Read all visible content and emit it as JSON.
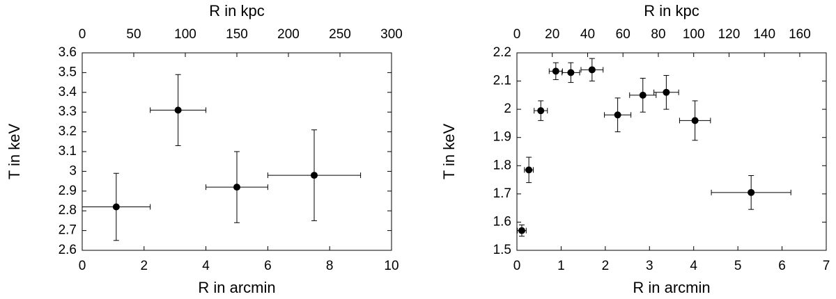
{
  "chart_data": [
    {
      "type": "scatter",
      "xlabel": "R in arcmin",
      "ylabel": "T in keV",
      "x2label": "R in kpc",
      "color": "#000000",
      "x": [
        1.1,
        3.1,
        5.0,
        7.5
      ],
      "xerr": [
        1.1,
        0.9,
        1.0,
        1.5
      ],
      "y": [
        2.82,
        3.31,
        2.92,
        2.98
      ],
      "yerr": [
        0.17,
        0.18,
        0.18,
        0.23
      ],
      "xlim": [
        0,
        10
      ],
      "xticks": [
        0,
        2,
        4,
        6,
        8,
        10
      ],
      "ylim": [
        2.6,
        3.6
      ],
      "yticks": [
        2.6,
        2.7,
        2.8,
        2.9,
        3,
        3.1,
        3.2,
        3.3,
        3.4,
        3.5,
        3.6
      ],
      "x2lim": [
        0,
        300
      ],
      "x2ticks": [
        0,
        50,
        100,
        150,
        200,
        250,
        300
      ]
    },
    {
      "type": "scatter",
      "xlabel": "R in arcmin",
      "ylabel": "T in keV",
      "x2label": "R in kpc",
      "color": "#000000",
      "x": [
        0.11,
        0.27,
        0.54,
        0.88,
        1.22,
        1.7,
        2.28,
        2.85,
        3.38,
        4.03,
        5.3
      ],
      "xerr": [
        0.1,
        0.1,
        0.15,
        0.15,
        0.2,
        0.25,
        0.3,
        0.3,
        0.28,
        0.35,
        0.9
      ],
      "y": [
        1.57,
        1.785,
        1.995,
        2.135,
        2.13,
        2.14,
        1.98,
        2.05,
        2.06,
        1.96,
        1.705
      ],
      "yerr": [
        0.02,
        0.045,
        0.035,
        0.03,
        0.035,
        0.04,
        0.06,
        0.06,
        0.06,
        0.07,
        0.06
      ],
      "xlim": [
        0,
        7
      ],
      "xticks": [
        0,
        1,
        2,
        3,
        4,
        5,
        6,
        7
      ],
      "ylim": [
        1.5,
        2.2
      ],
      "yticks": [
        1.5,
        1.6,
        1.7,
        1.8,
        1.9,
        2,
        2.1,
        2.2
      ],
      "x2lim": [
        0,
        175
      ],
      "x2ticks": [
        0,
        20,
        40,
        60,
        80,
        100,
        120,
        140,
        160
      ]
    }
  ]
}
